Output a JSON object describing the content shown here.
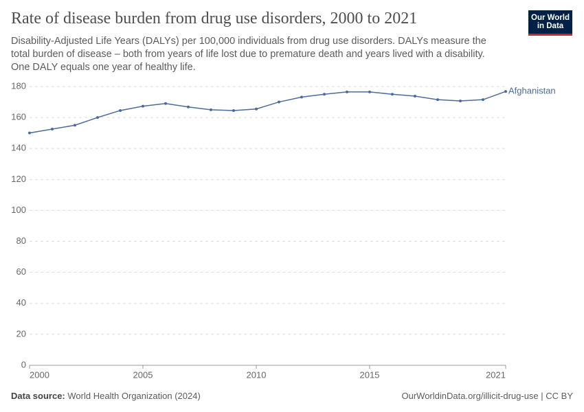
{
  "chart_data": {
    "type": "line",
    "title": "Rate of disease burden from drug use disorders, 2000 to 2021",
    "subtitle": "Disability-Adjusted Life Years (DALYs) per 100,000 individuals from drug use disorders. DALYs measure the total burden of disease – both from years of life lost due to premature death and years lived with a disability. One DALY equals one year of healthy life.",
    "logo": "Our World in Data",
    "source_label": "Data source:",
    "source": "World Health Organization (2024)",
    "credit": "OurWorldinData.org/illicit-drug-use | CC BY",
    "x": [
      2000,
      2001,
      2002,
      2003,
      2004,
      2005,
      2006,
      2007,
      2008,
      2009,
      2010,
      2011,
      2012,
      2013,
      2014,
      2015,
      2016,
      2017,
      2018,
      2019,
      2020,
      2021
    ],
    "series": [
      {
        "name": "Afghanistan",
        "color": "#4c6a9c",
        "values": [
          150,
          152.5,
          155,
          160,
          164.5,
          167.3,
          169,
          166.8,
          165,
          164.5,
          165.5,
          170,
          173.2,
          175,
          176.5,
          176.5,
          175,
          173.8,
          171.5,
          170.7,
          171.5,
          176.8
        ]
      }
    ],
    "xlim": [
      2000,
      2021
    ],
    "xticks": [
      2000,
      2005,
      2010,
      2015,
      2021
    ],
    "ylim": [
      0,
      180
    ],
    "yticks": [
      0,
      20,
      40,
      60,
      80,
      100,
      120,
      140,
      160,
      180
    ],
    "grid": true
  }
}
